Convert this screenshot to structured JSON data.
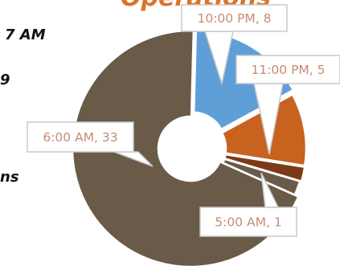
{
  "header": {
    "title": "Operations"
  },
  "side_text": [
    "7 AM",
    "9",
    "ns"
  ],
  "colors": {
    "slice_6am": "#6a5a48",
    "slice_10pm": "#5f9fd8",
    "slice_11pm": "#c8621f",
    "slice_midnight": "#7b3a16",
    "slice_5am": "#6a5a48",
    "label_text": "#c58c74",
    "title": "#d9752a"
  },
  "chart_data": {
    "type": "pie",
    "donut": true,
    "title": "",
    "slices": [
      {
        "category": "10:00 PM",
        "value": 8,
        "label": "10:00 PM, 8",
        "color": "#5f9fd8"
      },
      {
        "category": "11:00 PM",
        "value": 5,
        "label": "11:00 PM, 5",
        "color": "#c8621f"
      },
      {
        "category": "",
        "value": 1,
        "label": "",
        "color": "#7b3a16"
      },
      {
        "category": "5:00 AM",
        "value": 1,
        "label": "5:00 AM, 1",
        "color": "#6a5a48"
      },
      {
        "category": "6:00 AM",
        "value": 33,
        "label": "6:00 AM, 33",
        "color": "#6a5a48"
      }
    ]
  }
}
